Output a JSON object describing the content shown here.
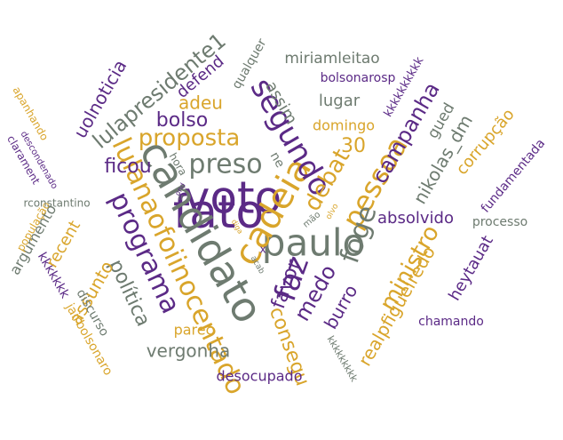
{
  "colors": {
    "purple": "#5b2a86",
    "gold": "#d9a52b",
    "gray": "#6e7b70"
  },
  "words": [
    {
      "text": "voto",
      "color": "purple"
    },
    {
      "text": "fato",
      "color": "purple"
    },
    {
      "text": "paulo",
      "color": "gray"
    },
    {
      "text": "candidato",
      "color": "gray"
    },
    {
      "text": "lulanaofoiinocentado",
      "color": "gold"
    },
    {
      "text": "cadeia",
      "color": "gold"
    },
    {
      "text": "segundo",
      "color": "purple"
    },
    {
      "text": "preso",
      "color": "gray"
    },
    {
      "text": "proposta",
      "color": "gold"
    },
    {
      "text": "pessoa",
      "color": "gold"
    },
    {
      "text": "faz",
      "color": "purple"
    },
    {
      "text": "foge",
      "color": "gray"
    },
    {
      "text": "programa",
      "color": "purple"
    },
    {
      "text": "ministro",
      "color": "gold"
    },
    {
      "text": "debat",
      "color": "gold"
    },
    {
      "text": "campanha",
      "color": "purple"
    },
    {
      "text": "lulapresidente1",
      "color": "gray"
    },
    {
      "text": "bolso",
      "color": "purple"
    },
    {
      "text": "ficou",
      "color": "purple"
    },
    {
      "text": "medo",
      "color": "purple"
    },
    {
      "text": "favor",
      "color": "purple"
    },
    {
      "text": "consegu",
      "color": "gold"
    },
    {
      "text": "realpfigueiredo",
      "color": "gold"
    },
    {
      "text": "política",
      "color": "gray"
    },
    {
      "text": "vergonha",
      "color": "gray"
    },
    {
      "text": "nikolas_dm",
      "color": "gray"
    },
    {
      "text": "absolvido",
      "color": "purple"
    },
    {
      "text": "uolnoticia",
      "color": "purple"
    },
    {
      "text": "defend",
      "color": "purple"
    },
    {
      "text": "adeu",
      "color": "gold"
    },
    {
      "text": "assim",
      "color": "gray"
    },
    {
      "text": "lugar",
      "color": "gray"
    },
    {
      "text": "miriamleitao",
      "color": "gray"
    },
    {
      "text": "qualquer",
      "color": "gray"
    },
    {
      "text": "bolsonarosp",
      "color": "purple"
    },
    {
      "text": "kkkkkkkkkk",
      "color": "purple"
    },
    {
      "text": "domingo",
      "color": "gold"
    },
    {
      "text": "30",
      "color": "gold"
    },
    {
      "text": "gued",
      "color": "gray"
    },
    {
      "text": "corrupção",
      "color": "gold"
    },
    {
      "text": "fundamentada",
      "color": "purple"
    },
    {
      "text": "processo",
      "color": "gray"
    },
    {
      "text": "heytauat",
      "color": "purple"
    },
    {
      "text": "chamando",
      "color": "purple"
    },
    {
      "text": "burro",
      "color": "purple"
    },
    {
      "text": "assunto",
      "color": "gold"
    },
    {
      "text": "parec",
      "color": "gold"
    },
    {
      "text": "discurso",
      "color": "gray"
    },
    {
      "text": "jairbolsonaro",
      "color": "gold"
    },
    {
      "text": "kkkkkkk",
      "color": "purple"
    },
    {
      "text": "recent",
      "color": "gold"
    },
    {
      "text": "argumento",
      "color": "gray"
    },
    {
      "text": "população",
      "color": "gold"
    },
    {
      "text": "rconstantino",
      "color": "gray"
    },
    {
      "text": "clarament",
      "color": "purple"
    },
    {
      "text": "descondenado",
      "color": "purple"
    },
    {
      "text": "apanhando",
      "color": "gold"
    },
    {
      "text": "desocupado",
      "color": "purple"
    },
    {
      "text": "kkkkkkkkk",
      "color": "gray"
    },
    {
      "text": "ne",
      "color": "gray"
    },
    {
      "text": "x",
      "color": "purple"
    },
    {
      "text": "hora",
      "color": "gray"
    },
    {
      "text": "ir",
      "color": "gray"
    },
    {
      "text": "mão",
      "color": "gray"
    },
    {
      "text": "olvo",
      "color": "gold"
    },
    {
      "text": "acab",
      "color": "gray"
    },
    {
      "text": "diga",
      "color": "gold"
    },
    {
      "text": "ond",
      "color": "purple"
    }
  ]
}
